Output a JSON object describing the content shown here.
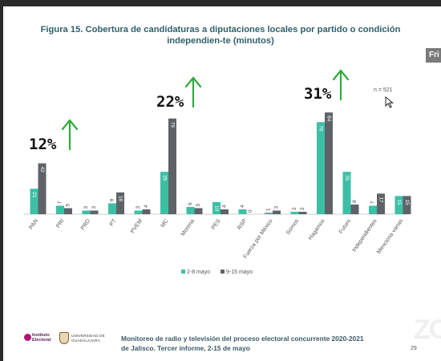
{
  "title": "Figura 15. Cobertura de candidaturas a diputaciones locales por partido o condición independien-te (minutos)",
  "side_tab_label": "Fri",
  "colors": {
    "series1": "#3dbfa6",
    "series2": "#5f6368",
    "arrow": "#2faa3c",
    "title": "#2f5f6b"
  },
  "annotations": [
    {
      "text": "12%",
      "category": "PAN"
    },
    {
      "text": "22%",
      "category": "MC"
    },
    {
      "text": "31%",
      "category": "Hagamos"
    }
  ],
  "note": "n = 521",
  "chart_data": {
    "type": "bar",
    "title": "Figura 15. Cobertura de candidaturas a diputaciones locales por partido o condición independien-te (minutos)",
    "categories": [
      "PAN",
      "PRI",
      "PRD",
      "PT",
      "PVEM",
      "MC",
      "Morena",
      "PES",
      "RSP",
      "Fuerza por México",
      "Somos",
      "Hagamos",
      "Futuro",
      "Independientes",
      "Menciona varias"
    ],
    "series": [
      {
        "name": "2-8 mayo",
        "values": [
          21,
          7,
          3,
          9,
          3,
          35,
          6,
          10,
          4,
          1,
          2,
          76,
          35,
          7,
          15
        ]
      },
      {
        "name": "9-15 mayo",
        "values": [
          42,
          5,
          3,
          18,
          4,
          79,
          5,
          4,
          0,
          3,
          2,
          84,
          8,
          17,
          15
        ]
      }
    ],
    "ylim": [
      0,
      90
    ],
    "grid": false,
    "legend": "bottom-center",
    "data_labels": true
  },
  "footer": {
    "line1": "Monitoreo de radio y televisión del proceso electoral concurrente 2020-2021",
    "line2": "de Jalisco. Tercer informe, 2-15 de mayo",
    "page": "29"
  },
  "logos": {
    "iep": "Instituto Electoral",
    "udg_line1": "UNIVERSIDAD DE",
    "udg_line2": "GUADALAJARA"
  },
  "watermark": "ZO"
}
